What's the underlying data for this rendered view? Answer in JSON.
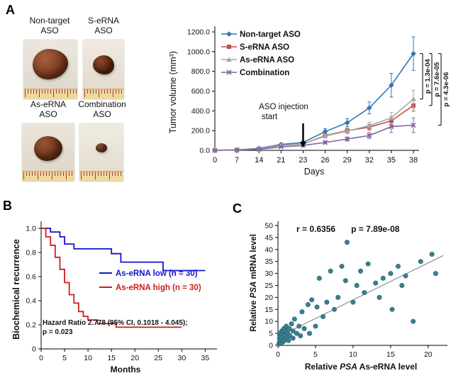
{
  "panels": {
    "a": {
      "label": "A",
      "photos": [
        {
          "line1": "Non-target",
          "line2": "ASO"
        },
        {
          "line1": "S-eRNA",
          "line2": "ASO"
        },
        {
          "line1": "As-eRNA",
          "line2": "ASO"
        },
        {
          "line1": "Combination",
          "line2": "ASO"
        }
      ]
    },
    "b": {
      "label": "B",
      "legend": [
        {
          "label": "As-eRNA low (n = 30)",
          "color": "#1414cc"
        },
        {
          "label": "As-eRNA high (n = 30)",
          "color": "#cc1e1e"
        }
      ],
      "hr_line1": "Hazard Ratio 2.778 (95% CI, 0.1018 - 4.045);",
      "hr_line2": "p = 0.023"
    },
    "c": {
      "label": "C",
      "r_label": "r = 0.6356",
      "p_label": "p = 7.89e-08"
    }
  },
  "chart_data": [
    {
      "id": "tumor_volume",
      "type": "line",
      "title": "",
      "xlabel": "Days",
      "ylabel": "Tumor volume (mm³)",
      "x": [
        0,
        7,
        14,
        21,
        23,
        26,
        29,
        32,
        35,
        38
      ],
      "xtick_labels": [
        "0",
        "7",
        "14",
        "21",
        "23",
        "26",
        "29",
        "32",
        "35",
        "38"
      ],
      "ylim": [
        0,
        1200
      ],
      "yticks": [
        0,
        200,
        400,
        600,
        800,
        1000,
        1200
      ],
      "ytick_labels": [
        "0.0",
        "200.0",
        "400.0",
        "600.0",
        "800.0",
        "1000.0",
        "1200.0"
      ],
      "legend_position": "top-left-inside",
      "grid": false,
      "series": [
        {
          "name": "Non-target ASO",
          "color": "#2e75b6",
          "marker": "diamond",
          "values": [
            0,
            5,
            20,
            60,
            80,
            190,
            280,
            430,
            660,
            980
          ],
          "errors": [
            0,
            0,
            5,
            10,
            15,
            30,
            40,
            60,
            120,
            170
          ]
        },
        {
          "name": "S-eRNA ASO",
          "color": "#c0504d",
          "marker": "square",
          "values": [
            0,
            5,
            15,
            50,
            65,
            150,
            200,
            235,
            300,
            455
          ],
          "errors": [
            0,
            0,
            5,
            8,
            10,
            20,
            25,
            30,
            40,
            60
          ]
        },
        {
          "name": "As-eRNA ASO",
          "color": "#a6a6a6",
          "marker": "triangle",
          "values": [
            0,
            5,
            15,
            50,
            65,
            145,
            195,
            250,
            330,
            520
          ],
          "errors": [
            0,
            0,
            5,
            8,
            10,
            20,
            25,
            35,
            55,
            90
          ]
        },
        {
          "name": "Combination",
          "color": "#8064a2",
          "marker": "x",
          "values": [
            0,
            3,
            10,
            35,
            50,
            80,
            115,
            150,
            240,
            255
          ],
          "errors": [
            0,
            0,
            3,
            8,
            10,
            15,
            20,
            30,
            60,
            75
          ]
        }
      ],
      "annotation": {
        "line1": "ASO injection",
        "line2": "start",
        "x_index": 4
      },
      "pvalues": [
        {
          "label": "p = 1.3e-04",
          "series": 2
        },
        {
          "label": "p = 7.6e-05",
          "series": 1
        },
        {
          "label": "p = 4.3e-06",
          "series": 3
        }
      ]
    },
    {
      "id": "biochemical_recurrence_km",
      "type": "line",
      "title": "",
      "xlabel": "Months",
      "ylabel": "Biochemical recurrence",
      "xlim": [
        0,
        36
      ],
      "ylim": [
        0,
        1
      ],
      "xticks": [
        0,
        5,
        10,
        15,
        20,
        25,
        30,
        35
      ],
      "yticks": [
        0,
        0.2,
        0.4,
        0.6,
        0.8,
        1.0
      ],
      "ytick_labels": [
        "0",
        "0.2",
        "0.4",
        "0.6",
        "0.8",
        "1.0"
      ],
      "grid": false,
      "series": [
        {
          "name": "As-eRNA low (n = 30)",
          "color": "#1414cc",
          "steps": [
            [
              0,
              1.0
            ],
            [
              2,
              1.0
            ],
            [
              2,
              0.97
            ],
            [
              4,
              0.97
            ],
            [
              4,
              0.93
            ],
            [
              5,
              0.93
            ],
            [
              5,
              0.87
            ],
            [
              7,
              0.87
            ],
            [
              7,
              0.83
            ],
            [
              15,
              0.83
            ],
            [
              15,
              0.79
            ],
            [
              17,
              0.79
            ],
            [
              17,
              0.72
            ],
            [
              26,
              0.72
            ],
            [
              26,
              0.65
            ],
            [
              35,
              0.65
            ]
          ]
        },
        {
          "name": "As-eRNA high (n = 30)",
          "color": "#cc1e1e",
          "steps": [
            [
              0,
              1.0
            ],
            [
              1,
              1.0
            ],
            [
              1,
              0.93
            ],
            [
              2,
              0.93
            ],
            [
              2,
              0.86
            ],
            [
              3,
              0.86
            ],
            [
              3,
              0.76
            ],
            [
              4,
              0.76
            ],
            [
              4,
              0.66
            ],
            [
              5,
              0.66
            ],
            [
              5,
              0.55
            ],
            [
              6,
              0.55
            ],
            [
              6,
              0.45
            ],
            [
              7,
              0.45
            ],
            [
              7,
              0.38
            ],
            [
              8,
              0.38
            ],
            [
              8,
              0.31
            ],
            [
              9,
              0.31
            ],
            [
              9,
              0.27
            ],
            [
              10,
              0.27
            ],
            [
              10,
              0.24
            ],
            [
              12,
              0.24
            ],
            [
              12,
              0.21
            ],
            [
              16,
              0.21
            ],
            [
              16,
              0.18
            ],
            [
              30,
              0.18
            ]
          ]
        }
      ],
      "annotation": "Hazard Ratio 2.778 (95% CI, 0.1018 - 4.045); p = 0.023"
    },
    {
      "id": "psa_correlation",
      "type": "scatter",
      "title": "",
      "xlabel": "Relative PSA As-eRNA level",
      "xlabel_parts": [
        "Relative ",
        "PSA",
        " As-eRNA level"
      ],
      "ylabel": "Relative PSA mRNA level",
      "ylabel_parts": [
        "Relative ",
        "PSA",
        " mRNA level"
      ],
      "xlim": [
        0,
        22
      ],
      "ylim": [
        0,
        50
      ],
      "xticks": [
        0,
        5,
        10,
        15,
        20
      ],
      "yticks": [
        0,
        5,
        10,
        15,
        20,
        25,
        30,
        35,
        40,
        45,
        50
      ],
      "grid": false,
      "color": "#3a7f8e",
      "r": 0.6356,
      "p": "7.89e-08",
      "trendline": {
        "x": [
          0,
          22
        ],
        "y": [
          3.5,
          37.5
        ]
      },
      "points": [
        [
          0.1,
          0.5
        ],
        [
          0.2,
          1.5
        ],
        [
          0.2,
          3
        ],
        [
          0.3,
          2
        ],
        [
          0.3,
          5
        ],
        [
          0.4,
          1
        ],
        [
          0.4,
          4
        ],
        [
          0.5,
          2.5
        ],
        [
          0.5,
          6
        ],
        [
          0.6,
          3.5
        ],
        [
          0.7,
          1.5
        ],
        [
          0.7,
          5
        ],
        [
          0.8,
          2
        ],
        [
          0.8,
          7
        ],
        [
          0.9,
          4
        ],
        [
          1.0,
          2.5
        ],
        [
          1.0,
          6
        ],
        [
          1.1,
          8
        ],
        [
          1.2,
          3
        ],
        [
          1.3,
          5
        ],
        [
          1.4,
          2
        ],
        [
          1.5,
          7
        ],
        [
          1.6,
          4
        ],
        [
          1.8,
          9
        ],
        [
          2.0,
          3
        ],
        [
          2.0,
          6
        ],
        [
          2.2,
          11
        ],
        [
          2.5,
          5
        ],
        [
          2.8,
          8
        ],
        [
          3.0,
          4
        ],
        [
          3.2,
          14
        ],
        [
          3.5,
          7
        ],
        [
          4.0,
          17
        ],
        [
          4.2,
          5
        ],
        [
          4.5,
          19
        ],
        [
          5.0,
          8
        ],
        [
          5.2,
          16
        ],
        [
          5.5,
          28
        ],
        [
          6.0,
          12
        ],
        [
          6.5,
          18
        ],
        [
          7.0,
          31
        ],
        [
          7.5,
          15
        ],
        [
          8.0,
          20
        ],
        [
          8.5,
          33
        ],
        [
          9.0,
          27
        ],
        [
          9.2,
          43
        ],
        [
          10.0,
          18
        ],
        [
          10.5,
          25
        ],
        [
          11.0,
          31
        ],
        [
          11.5,
          22
        ],
        [
          12.0,
          34
        ],
        [
          13.0,
          26
        ],
        [
          13.5,
          20
        ],
        [
          14.0,
          28
        ],
        [
          15.0,
          30
        ],
        [
          15.2,
          15
        ],
        [
          16.0,
          33
        ],
        [
          16.5,
          25
        ],
        [
          17.0,
          29
        ],
        [
          18.0,
          10
        ],
        [
          19.0,
          35
        ],
        [
          20.5,
          38
        ],
        [
          21.0,
          30
        ]
      ]
    }
  ]
}
